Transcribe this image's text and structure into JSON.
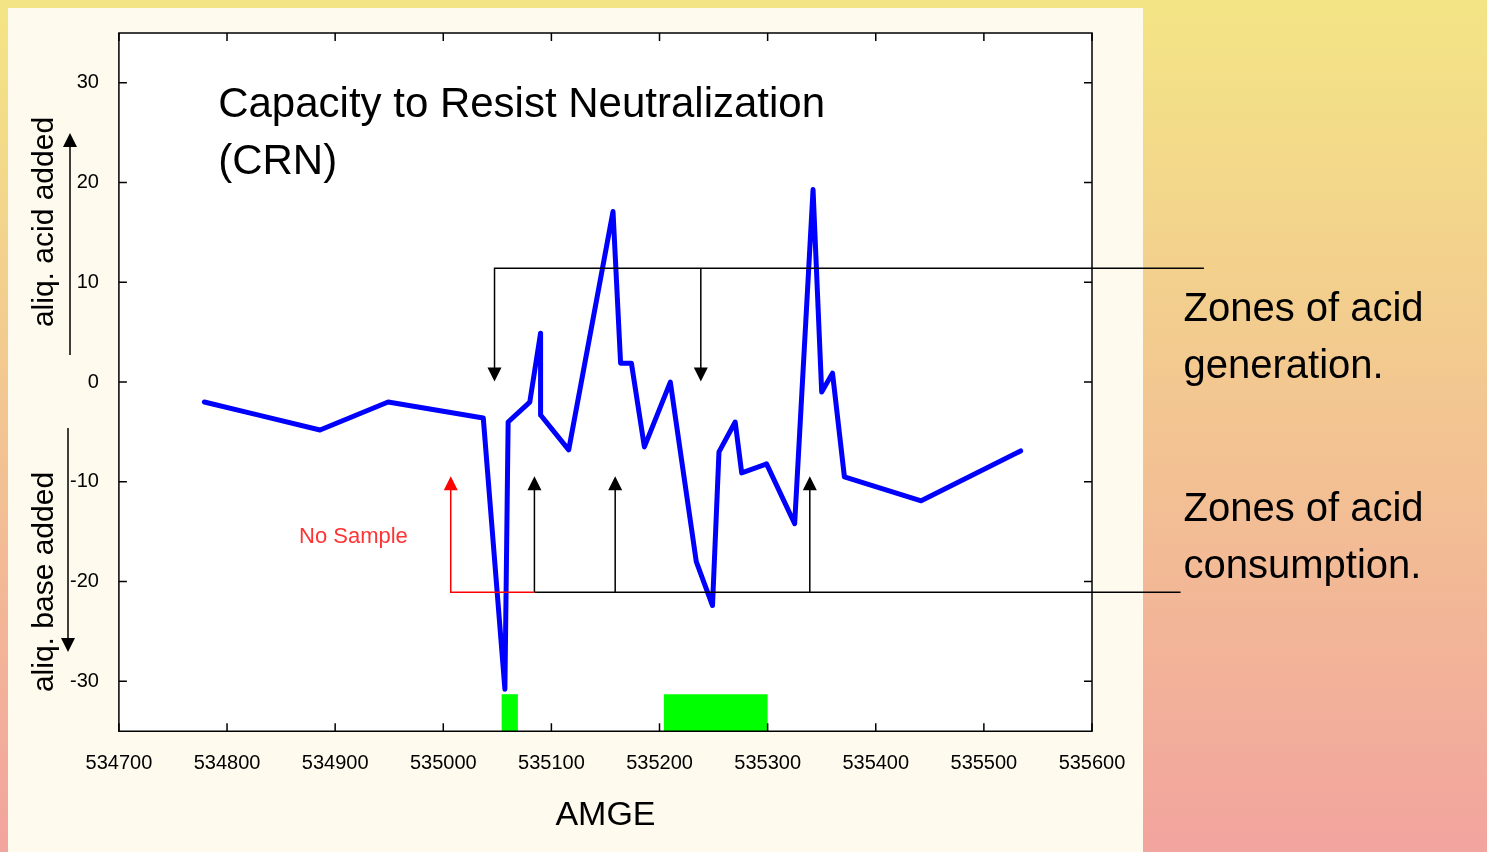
{
  "chart_data": {
    "type": "line",
    "title": "Capacity to Resist Neutralization (CRN)",
    "xlabel": "AMGE",
    "ylabel": "aliq. acid added",
    "annotations": [
      "aliq. base added",
      "Zones of acid generation.",
      "Zones of acid consumption.",
      "No Sample"
    ],
    "x": [
      534779,
      534886,
      534949,
      535037,
      535057,
      535060,
      535080,
      535090,
      535090,
      535116,
      535157,
      535164,
      535174,
      535186,
      535210,
      535234,
      535249,
      535255,
      535270,
      535276,
      535299,
      535325,
      535342,
      535350,
      535360,
      535371,
      535442,
      535534
    ],
    "series": [
      {
        "color": "#0000ff",
        "values": [
          -2,
          -4.8,
          -2,
          -3.6,
          -30.8,
          -4,
          -2,
          4.9,
          -3.3,
          -6.8,
          17.1,
          1.9,
          1.9,
          -6.5,
          0,
          -18,
          -22.4,
          -7,
          -4,
          -9.1,
          -8.2,
          -14.2,
          19.3,
          -1,
          0.9,
          -9.5,
          -11.9,
          -6.9
        ]
      }
    ],
    "bands": [
      {
        "axis": "x",
        "from": 535054,
        "to": 535069,
        "color": "#00ff00"
      },
      {
        "axis": "x",
        "from": 535204,
        "to": 535300,
        "color": "#00ff00"
      }
    ],
    "xlim": [
      534700,
      535600
    ],
    "xticks": [
      534700,
      534800,
      534900,
      535000,
      535100,
      535200,
      535300,
      535400,
      535500,
      535600
    ],
    "ylim": [
      -35,
      35
    ],
    "yticks": [
      -30,
      -20,
      -10,
      0,
      10,
      20,
      30
    ],
    "grid": false,
    "legend": false,
    "marker": "none",
    "line_style": "solid"
  }
}
